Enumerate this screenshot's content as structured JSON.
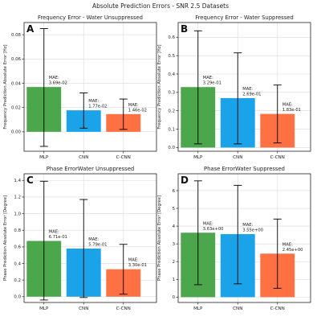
{
  "figure": {
    "suptitle": "Absolute Prediction Errors - SNR 2.5 Datasets",
    "colors": {
      "MLP": "#4ca64c",
      "CNN": "#1aa3e8",
      "C-CNN": "#ff7043",
      "errorbar": "#000000"
    }
  },
  "chart_data": [
    {
      "type": "bar",
      "panel_letter": "A",
      "title": "Frequency Error - Water Unsuppressed",
      "xlabel": "",
      "ylabel": "Frequency Prediction Absolute Error [Hz]",
      "categories": [
        "MLP",
        "CNN",
        "C-CNN"
      ],
      "values": [
        0.0369,
        0.0177,
        0.0146
      ],
      "err_low": [
        -0.012,
        0.003,
        0.002
      ],
      "err_high": [
        0.085,
        0.032,
        0.027
      ],
      "annotations": [
        "MAE:\n3.69e-02",
        "MAE:\n1.77e-02",
        "MAE:\n1.46e-02"
      ],
      "ylim": [
        -0.016,
        0.09
      ],
      "yticks": [
        0.0,
        0.02,
        0.04,
        0.06,
        0.08
      ],
      "yticklabels": [
        "0.00",
        "0.02",
        "0.04",
        "0.06",
        "0.08"
      ],
      "grid": true
    },
    {
      "type": "bar",
      "panel_letter": "B",
      "title": "Frequency Error - Water Suppressed",
      "xlabel": "",
      "ylabel": "Frequency Prediction Absolute Error [Hz]",
      "categories": [
        "MLP",
        "CNN",
        "C-CNN"
      ],
      "values": [
        0.329,
        0.269,
        0.183
      ],
      "err_low": [
        0.02,
        0.02,
        0.025
      ],
      "err_high": [
        0.635,
        0.515,
        0.34
      ],
      "annotations": [
        "MAE:\n3.29e-01",
        "MAE:\n2.69e-01",
        "MAE:\n1.83e-01"
      ],
      "ylim": [
        -0.02,
        0.68
      ],
      "yticks": [
        0.0,
        0.1,
        0.2,
        0.3,
        0.4,
        0.5,
        0.6
      ],
      "yticklabels": [
        "0.0",
        "0.1",
        "0.2",
        "0.3",
        "0.4",
        "0.5",
        "0.6"
      ],
      "grid": true
    },
    {
      "type": "bar",
      "panel_letter": "C",
      "title": "Phase ErrorWater Unsuppressed",
      "xlabel": "",
      "ylabel": "Phase Prediction Absolute Error [Degree]",
      "categories": [
        "MLP",
        "CNN",
        "C-CNN"
      ],
      "values": [
        0.671,
        0.579,
        0.33
      ],
      "err_low": [
        -0.04,
        -0.01,
        0.03
      ],
      "err_high": [
        1.39,
        1.17,
        0.63
      ],
      "annotations": [
        "MAE:\n6.71e-01",
        "MAE:\n5.79e-01",
        "MAE:\n3.30e-01"
      ],
      "ylim": [
        -0.07,
        1.48
      ],
      "yticks": [
        0.0,
        0.2,
        0.4,
        0.6,
        0.8,
        1.0,
        1.2,
        1.4
      ],
      "yticklabels": [
        "0.0",
        "0.2",
        "0.4",
        "0.6",
        "0.8",
        "1.0",
        "1.2",
        "1.4"
      ],
      "grid": true
    },
    {
      "type": "bar",
      "panel_letter": "D",
      "title": "Phase ErrorWater Suppressed",
      "xlabel": "",
      "ylabel": "Phase Prediction Absolute Error [Degree]",
      "categories": [
        "MLP",
        "CNN",
        "C-CNN"
      ],
      "values": [
        3.63,
        3.55,
        2.45
      ],
      "err_low": [
        0.7,
        0.75,
        0.5
      ],
      "err_high": [
        6.55,
        6.3,
        4.4
      ],
      "annotations": [
        "MAE:\n3.63e+00",
        "MAE:\n3.55e+00",
        "MAE:\n2.45e+00"
      ],
      "ylim": [
        -0.3,
        6.95
      ],
      "yticks": [
        0,
        1,
        2,
        3,
        4,
        5,
        6
      ],
      "yticklabels": [
        "0",
        "1",
        "2",
        "3",
        "4",
        "5",
        "6"
      ],
      "grid": true
    }
  ]
}
